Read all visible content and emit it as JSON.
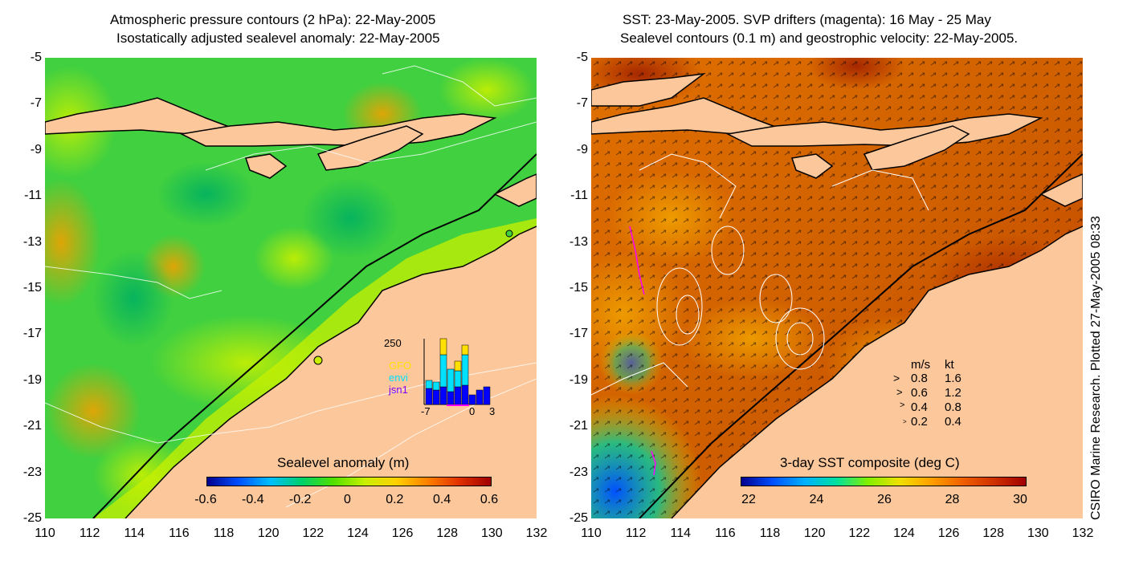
{
  "left_panel": {
    "title_line1": "Atmospheric pressure contours (2 hPa): 22-May-2005",
    "title_line2": "Isostatically adjusted sealevel anomaly: 22-May-2005",
    "colorbar_label": "Sealevel anomaly (m)",
    "colorbar_ticks": [
      "-0.6",
      "-0.4",
      "-0.2",
      "0",
      "0.2",
      "0.4",
      "0.6"
    ],
    "inset": {
      "y_max_label": "250",
      "legend": [
        "GFO",
        "envi",
        "jsn1"
      ],
      "legend_colors": [
        "#ffe000",
        "#00e0ff",
        "#8000ff"
      ],
      "x_ticks": [
        "-7",
        "0",
        "3"
      ]
    }
  },
  "right_panel": {
    "title_line1": "SST: 23-May-2005. SVP drifters (magenta): 16 May - 25 May",
    "title_line2": "Sealevel contours (0.1 m) and geostrophic velocity: 22-May-2005.",
    "colorbar_label": "3-day SST composite (deg C)",
    "colorbar_ticks": [
      "22",
      "24",
      "26",
      "28",
      "30"
    ],
    "velocity_legend": {
      "header_ms": "m/s",
      "header_kt": "kt",
      "rows": [
        {
          "ms": "0.8",
          "kt": "1.6"
        },
        {
          "ms": "0.6",
          "kt": "1.2"
        },
        {
          "ms": "0.4",
          "kt": "0.8"
        },
        {
          "ms": "0.2",
          "kt": "0.4"
        }
      ]
    }
  },
  "axes": {
    "y_ticks": [
      "-5",
      "-7",
      "-9",
      "-11",
      "-13",
      "-15",
      "-17",
      "-19",
      "-21",
      "-23",
      "-25"
    ],
    "x_ticks": [
      "110",
      "112",
      "114",
      "116",
      "118",
      "120",
      "122",
      "124",
      "126",
      "128",
      "130",
      "132"
    ]
  },
  "credit": "CSIRO Marine Research. Plotted 27-May-2005 08:33",
  "colors": {
    "land": "#fbc79b",
    "sealevel_colormap": [
      "#00008f",
      "#00bfff",
      "#00d06a",
      "#c8f000",
      "#ffd000",
      "#ff6000",
      "#a00000"
    ],
    "sst_colormap": [
      "#00008f",
      "#0070ff",
      "#00e0a0",
      "#e0f000",
      "#ff8000",
      "#b00000"
    ],
    "drifters": "#ff00ff"
  }
}
